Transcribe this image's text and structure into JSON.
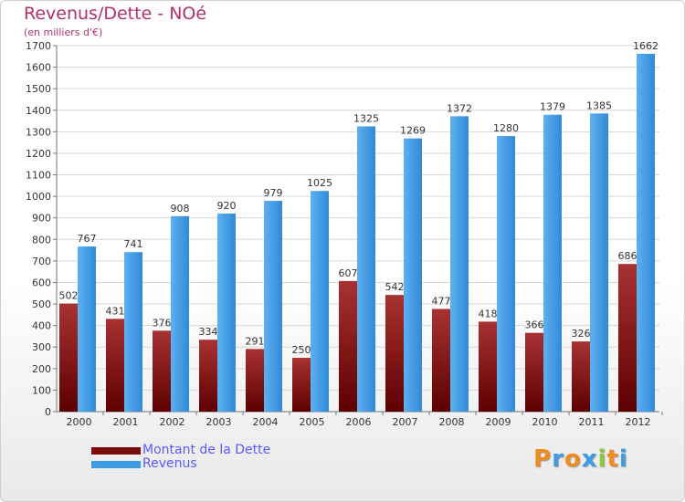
{
  "colors": {
    "dette": "#7a0d0d",
    "revenus": "#3d9be6",
    "title": "#b4306a",
    "legend_text": "#5a5aff"
  },
  "chart_data": {
    "type": "bar",
    "title": "Revenus/Dette - NOé",
    "subtitle": "(en milliers d'€)",
    "categories": [
      "2000",
      "2001",
      "2002",
      "2003",
      "2004",
      "2005",
      "2006",
      "2007",
      "2008",
      "2009",
      "2010",
      "2011",
      "2012"
    ],
    "series": [
      {
        "name": "Montant de la Dette",
        "values": [
          502,
          431,
          376,
          334,
          291,
          250,
          607,
          542,
          477,
          418,
          366,
          326,
          686
        ]
      },
      {
        "name": "Revenus",
        "values": [
          767,
          741,
          908,
          920,
          979,
          1025,
          1325,
          1269,
          1372,
          1280,
          1379,
          1385,
          1662
        ]
      }
    ],
    "ylim": [
      0,
      1700
    ],
    "y_ticks": [
      0,
      100,
      200,
      300,
      400,
      500,
      600,
      700,
      800,
      900,
      1000,
      1100,
      1200,
      1300,
      1400,
      1500,
      1600,
      1700
    ],
    "grid": true,
    "data_labels": true
  },
  "branding": {
    "letters": [
      "P",
      "r",
      "o",
      "x",
      "i",
      "t",
      "i"
    ],
    "letter_colors": [
      "#f08c1e",
      "#3f9be3",
      "#f08c1e",
      "#3f9be3",
      "#8dc63f",
      "#f08c1e",
      "#3f9be3"
    ]
  }
}
